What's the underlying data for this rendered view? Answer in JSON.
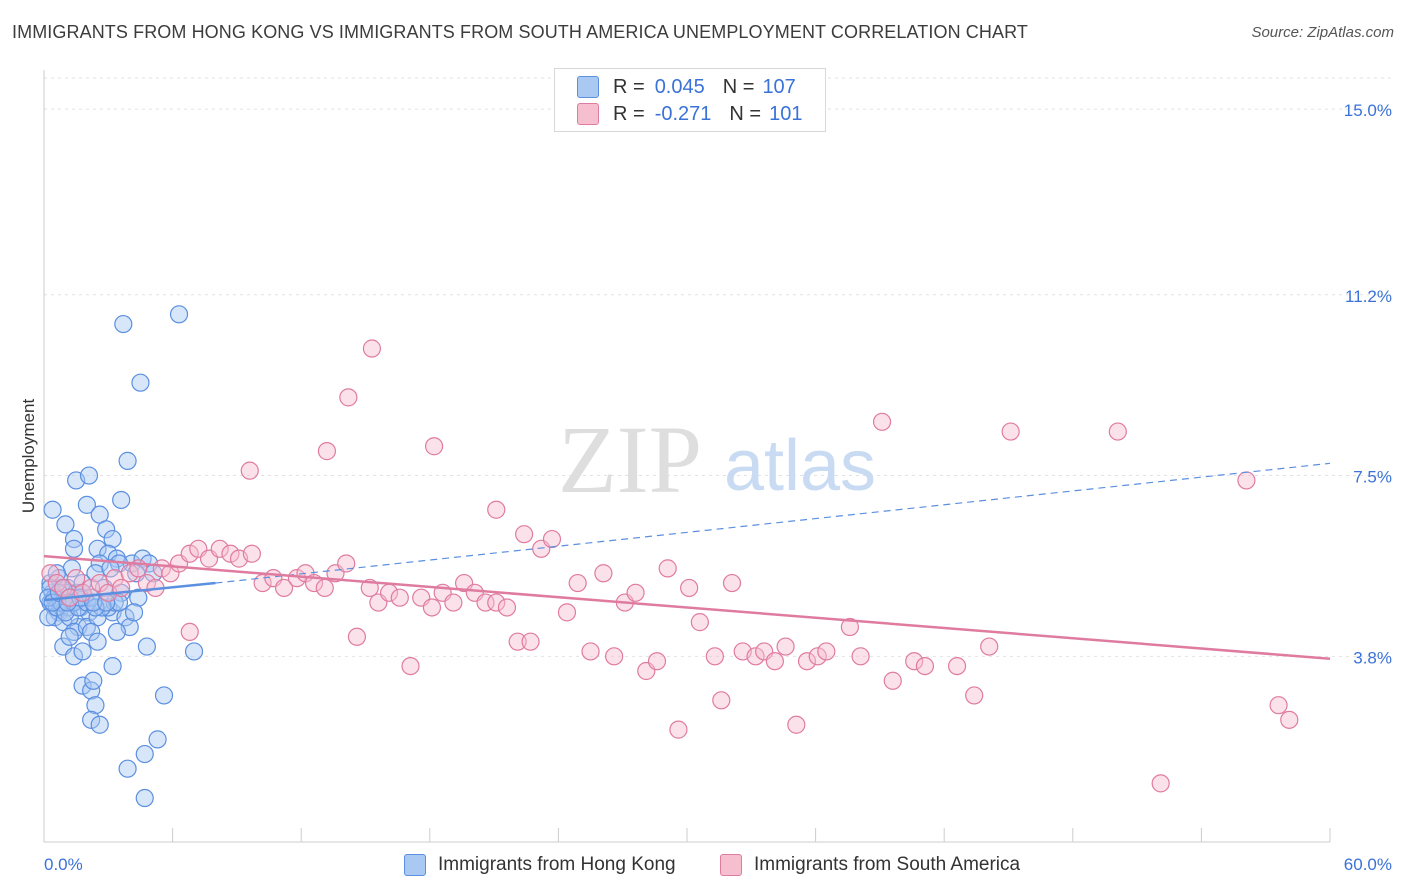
{
  "title": "IMMIGRANTS FROM HONG KONG VS IMMIGRANTS FROM SOUTH AMERICA UNEMPLOYMENT CORRELATION CHART",
  "source": "Source: ZipAtlas.com",
  "watermark": {
    "zip": "ZIP",
    "atlas": "atlas"
  },
  "legend": {
    "r_label": "R =",
    "n_label": "N =",
    "entries": [
      {
        "r": "0.045",
        "n": "107",
        "color": "#a9c8f2",
        "stroke": "#5b8fe0"
      },
      {
        "r": "-0.271",
        "n": "101",
        "color": "#f6bfd0",
        "stroke": "#e07ba0"
      }
    ]
  },
  "chart_data": {
    "type": "scatter",
    "title": "IMMIGRANTS FROM HONG KONG VS IMMIGRANTS FROM SOUTH AMERICA UNEMPLOYMENT CORRELATION CHART",
    "xlabel": "",
    "ylabel": "Unemployment",
    "xlim": [
      0,
      60
    ],
    "ylim": [
      0,
      15.8
    ],
    "x_tick_labels": [
      "0.0%",
      "60.0%"
    ],
    "y_ticks": [
      3.8,
      7.5,
      11.2,
      15.0
    ],
    "y_tick_labels": [
      "3.8%",
      "7.5%",
      "11.2%",
      "15.0%"
    ],
    "grid": true,
    "legend_placement": "bottom",
    "series": [
      {
        "name": "Immigrants from Hong Kong",
        "color": "#5b8fe0",
        "fill": "#a9c8f2",
        "trend": {
          "x0": 0,
          "y0": 4.95,
          "x1": 8.0,
          "y1": 5.3,
          "dashed_to_x": 60,
          "dashed_to_y": 7.75
        },
        "points": [
          [
            0.3,
            4.9
          ],
          [
            0.4,
            5.1
          ],
          [
            0.5,
            4.8
          ],
          [
            0.6,
            5.0
          ],
          [
            0.7,
            4.7
          ],
          [
            0.8,
            5.2
          ],
          [
            0.9,
            4.9
          ],
          [
            1.0,
            5.1
          ],
          [
            1.1,
            4.8
          ],
          [
            1.2,
            5.0
          ],
          [
            0.3,
            5.3
          ],
          [
            0.5,
            4.6
          ],
          [
            0.7,
            5.4
          ],
          [
            0.9,
            4.5
          ],
          [
            1.1,
            5.2
          ],
          [
            1.3,
            4.9
          ],
          [
            1.5,
            5.1
          ],
          [
            1.7,
            4.8
          ],
          [
            1.9,
            5.0
          ],
          [
            2.1,
            4.7
          ],
          [
            0.4,
            6.8
          ],
          [
            1.0,
            6.5
          ],
          [
            1.5,
            7.4
          ],
          [
            2.1,
            7.5
          ],
          [
            2.0,
            6.9
          ],
          [
            2.6,
            6.7
          ],
          [
            2.9,
            6.4
          ],
          [
            3.2,
            6.2
          ],
          [
            3.6,
            7.0
          ],
          [
            3.9,
            7.8
          ],
          [
            1.4,
            6.2
          ],
          [
            1.4,
            6.0
          ],
          [
            2.5,
            6.0
          ],
          [
            3.0,
            5.9
          ],
          [
            3.4,
            5.8
          ],
          [
            4.1,
            5.7
          ],
          [
            4.6,
            5.8
          ],
          [
            4.9,
            5.7
          ],
          [
            2.6,
            5.7
          ],
          [
            3.5,
            5.7
          ],
          [
            1.3,
            5.6
          ],
          [
            2.4,
            5.5
          ],
          [
            3.1,
            5.6
          ],
          [
            4.3,
            5.5
          ],
          [
            5.1,
            5.5
          ],
          [
            1.8,
            5.3
          ],
          [
            2.8,
            5.2
          ],
          [
            3.6,
            5.1
          ],
          [
            4.4,
            5.0
          ],
          [
            0.6,
            5.5
          ],
          [
            1.6,
            4.4
          ],
          [
            1.2,
            4.6
          ],
          [
            1.4,
            4.3
          ],
          [
            2.0,
            4.4
          ],
          [
            2.5,
            4.6
          ],
          [
            3.2,
            4.7
          ],
          [
            3.8,
            4.6
          ],
          [
            4.0,
            4.4
          ],
          [
            3.4,
            4.3
          ],
          [
            2.2,
            4.3
          ],
          [
            0.9,
            4.0
          ],
          [
            1.2,
            4.2
          ],
          [
            1.4,
            3.8
          ],
          [
            1.8,
            3.9
          ],
          [
            2.5,
            4.1
          ],
          [
            3.0,
            4.8
          ],
          [
            3.3,
            4.9
          ],
          [
            2.7,
            4.8
          ],
          [
            4.2,
            4.7
          ],
          [
            3.5,
            4.9
          ],
          [
            1.8,
            3.2
          ],
          [
            2.2,
            3.1
          ],
          [
            2.3,
            3.3
          ],
          [
            2.4,
            2.8
          ],
          [
            2.2,
            2.5
          ],
          [
            2.6,
            2.4
          ],
          [
            3.2,
            3.6
          ],
          [
            4.8,
            4.0
          ],
          [
            7.0,
            3.9
          ],
          [
            5.6,
            3.0
          ],
          [
            3.9,
            1.5
          ],
          [
            4.7,
            1.8
          ],
          [
            5.3,
            2.1
          ],
          [
            4.7,
            0.9
          ],
          [
            3.7,
            10.6
          ],
          [
            4.5,
            9.4
          ],
          [
            6.3,
            10.8
          ],
          [
            0.2,
            4.6
          ],
          [
            0.3,
            5.2
          ],
          [
            0.5,
            5.0
          ],
          [
            0.6,
            4.8
          ],
          [
            0.8,
            4.9
          ],
          [
            1.0,
            4.7
          ],
          [
            1.2,
            5.0
          ],
          [
            1.4,
            4.9
          ],
          [
            1.6,
            4.8
          ],
          [
            1.8,
            5.1
          ],
          [
            2.0,
            4.9
          ],
          [
            2.2,
            5.0
          ],
          [
            2.4,
            4.8
          ],
          [
            0.2,
            5.0
          ],
          [
            0.4,
            4.9
          ],
          [
            0.7,
            5.1
          ],
          [
            1.1,
            4.9
          ],
          [
            1.7,
            5.0
          ],
          [
            2.3,
            4.9
          ],
          [
            2.9,
            4.9
          ]
        ]
      },
      {
        "name": "Immigrants from South America",
        "color": "#e07ba0",
        "fill": "#f6bfd0",
        "trend": {
          "x0": 0,
          "y0": 5.85,
          "x1": 60,
          "y1": 3.75
        },
        "points": [
          [
            0.3,
            5.5
          ],
          [
            0.6,
            5.3
          ],
          [
            0.9,
            5.2
          ],
          [
            1.2,
            5.0
          ],
          [
            1.5,
            5.4
          ],
          [
            1.8,
            5.1
          ],
          [
            2.2,
            5.2
          ],
          [
            2.6,
            5.3
          ],
          [
            3.0,
            5.1
          ],
          [
            3.3,
            5.4
          ],
          [
            3.6,
            5.2
          ],
          [
            4.0,
            5.5
          ],
          [
            4.4,
            5.6
          ],
          [
            4.8,
            5.3
          ],
          [
            5.2,
            5.2
          ],
          [
            5.5,
            5.6
          ],
          [
            5.9,
            5.5
          ],
          [
            6.3,
            5.7
          ],
          [
            6.8,
            5.9
          ],
          [
            7.2,
            6.0
          ],
          [
            7.7,
            5.8
          ],
          [
            8.2,
            6.0
          ],
          [
            8.7,
            5.9
          ],
          [
            9.1,
            5.8
          ],
          [
            9.7,
            5.9
          ],
          [
            10.2,
            5.3
          ],
          [
            10.7,
            5.4
          ],
          [
            11.2,
            5.2
          ],
          [
            11.8,
            5.4
          ],
          [
            12.2,
            5.5
          ],
          [
            12.6,
            5.3
          ],
          [
            13.1,
            5.2
          ],
          [
            13.6,
            5.5
          ],
          [
            14.1,
            5.7
          ],
          [
            14.6,
            4.2
          ],
          [
            15.2,
            5.2
          ],
          [
            15.6,
            4.9
          ],
          [
            16.1,
            5.1
          ],
          [
            16.6,
            5.0
          ],
          [
            17.1,
            3.6
          ],
          [
            17.6,
            5.0
          ],
          [
            18.1,
            4.8
          ],
          [
            18.6,
            5.1
          ],
          [
            19.1,
            4.9
          ],
          [
            19.6,
            5.3
          ],
          [
            20.1,
            5.1
          ],
          [
            20.6,
            4.9
          ],
          [
            21.1,
            4.9
          ],
          [
            21.6,
            4.8
          ],
          [
            22.1,
            4.1
          ],
          [
            22.7,
            4.1
          ],
          [
            23.2,
            6.0
          ],
          [
            23.7,
            6.2
          ],
          [
            24.4,
            4.7
          ],
          [
            24.9,
            5.3
          ],
          [
            25.5,
            3.9
          ],
          [
            26.1,
            5.5
          ],
          [
            26.6,
            3.8
          ],
          [
            27.1,
            4.9
          ],
          [
            27.6,
            5.1
          ],
          [
            28.1,
            3.5
          ],
          [
            28.6,
            3.7
          ],
          [
            29.1,
            5.6
          ],
          [
            29.6,
            2.3
          ],
          [
            30.1,
            5.2
          ],
          [
            30.6,
            4.5
          ],
          [
            31.3,
            3.8
          ],
          [
            31.6,
            2.9
          ],
          [
            32.1,
            5.3
          ],
          [
            32.6,
            3.9
          ],
          [
            33.2,
            3.8
          ],
          [
            33.6,
            3.9
          ],
          [
            34.1,
            3.7
          ],
          [
            34.6,
            4.0
          ],
          [
            35.1,
            2.4
          ],
          [
            35.6,
            3.7
          ],
          [
            36.1,
            3.8
          ],
          [
            36.5,
            3.9
          ],
          [
            37.6,
            4.4
          ],
          [
            38.1,
            3.8
          ],
          [
            39.1,
            8.6
          ],
          [
            39.6,
            3.3
          ],
          [
            40.6,
            3.7
          ],
          [
            41.1,
            3.6
          ],
          [
            42.6,
            3.6
          ],
          [
            43.4,
            3.0
          ],
          [
            44.1,
            4.0
          ],
          [
            45.1,
            8.4
          ],
          [
            50.1,
            8.4
          ],
          [
            57.6,
            2.8
          ],
          [
            58.1,
            2.5
          ],
          [
            52.1,
            1.2
          ],
          [
            56.1,
            7.4
          ],
          [
            15.3,
            10.1
          ],
          [
            14.2,
            9.1
          ],
          [
            13.2,
            8.0
          ],
          [
            9.6,
            7.6
          ],
          [
            18.2,
            8.1
          ],
          [
            21.1,
            6.8
          ],
          [
            22.4,
            6.3
          ],
          [
            6.8,
            4.3
          ]
        ]
      }
    ]
  },
  "bottom_legend": [
    {
      "label": "Immigrants from Hong Kong"
    },
    {
      "label": "Immigrants from South America"
    }
  ]
}
